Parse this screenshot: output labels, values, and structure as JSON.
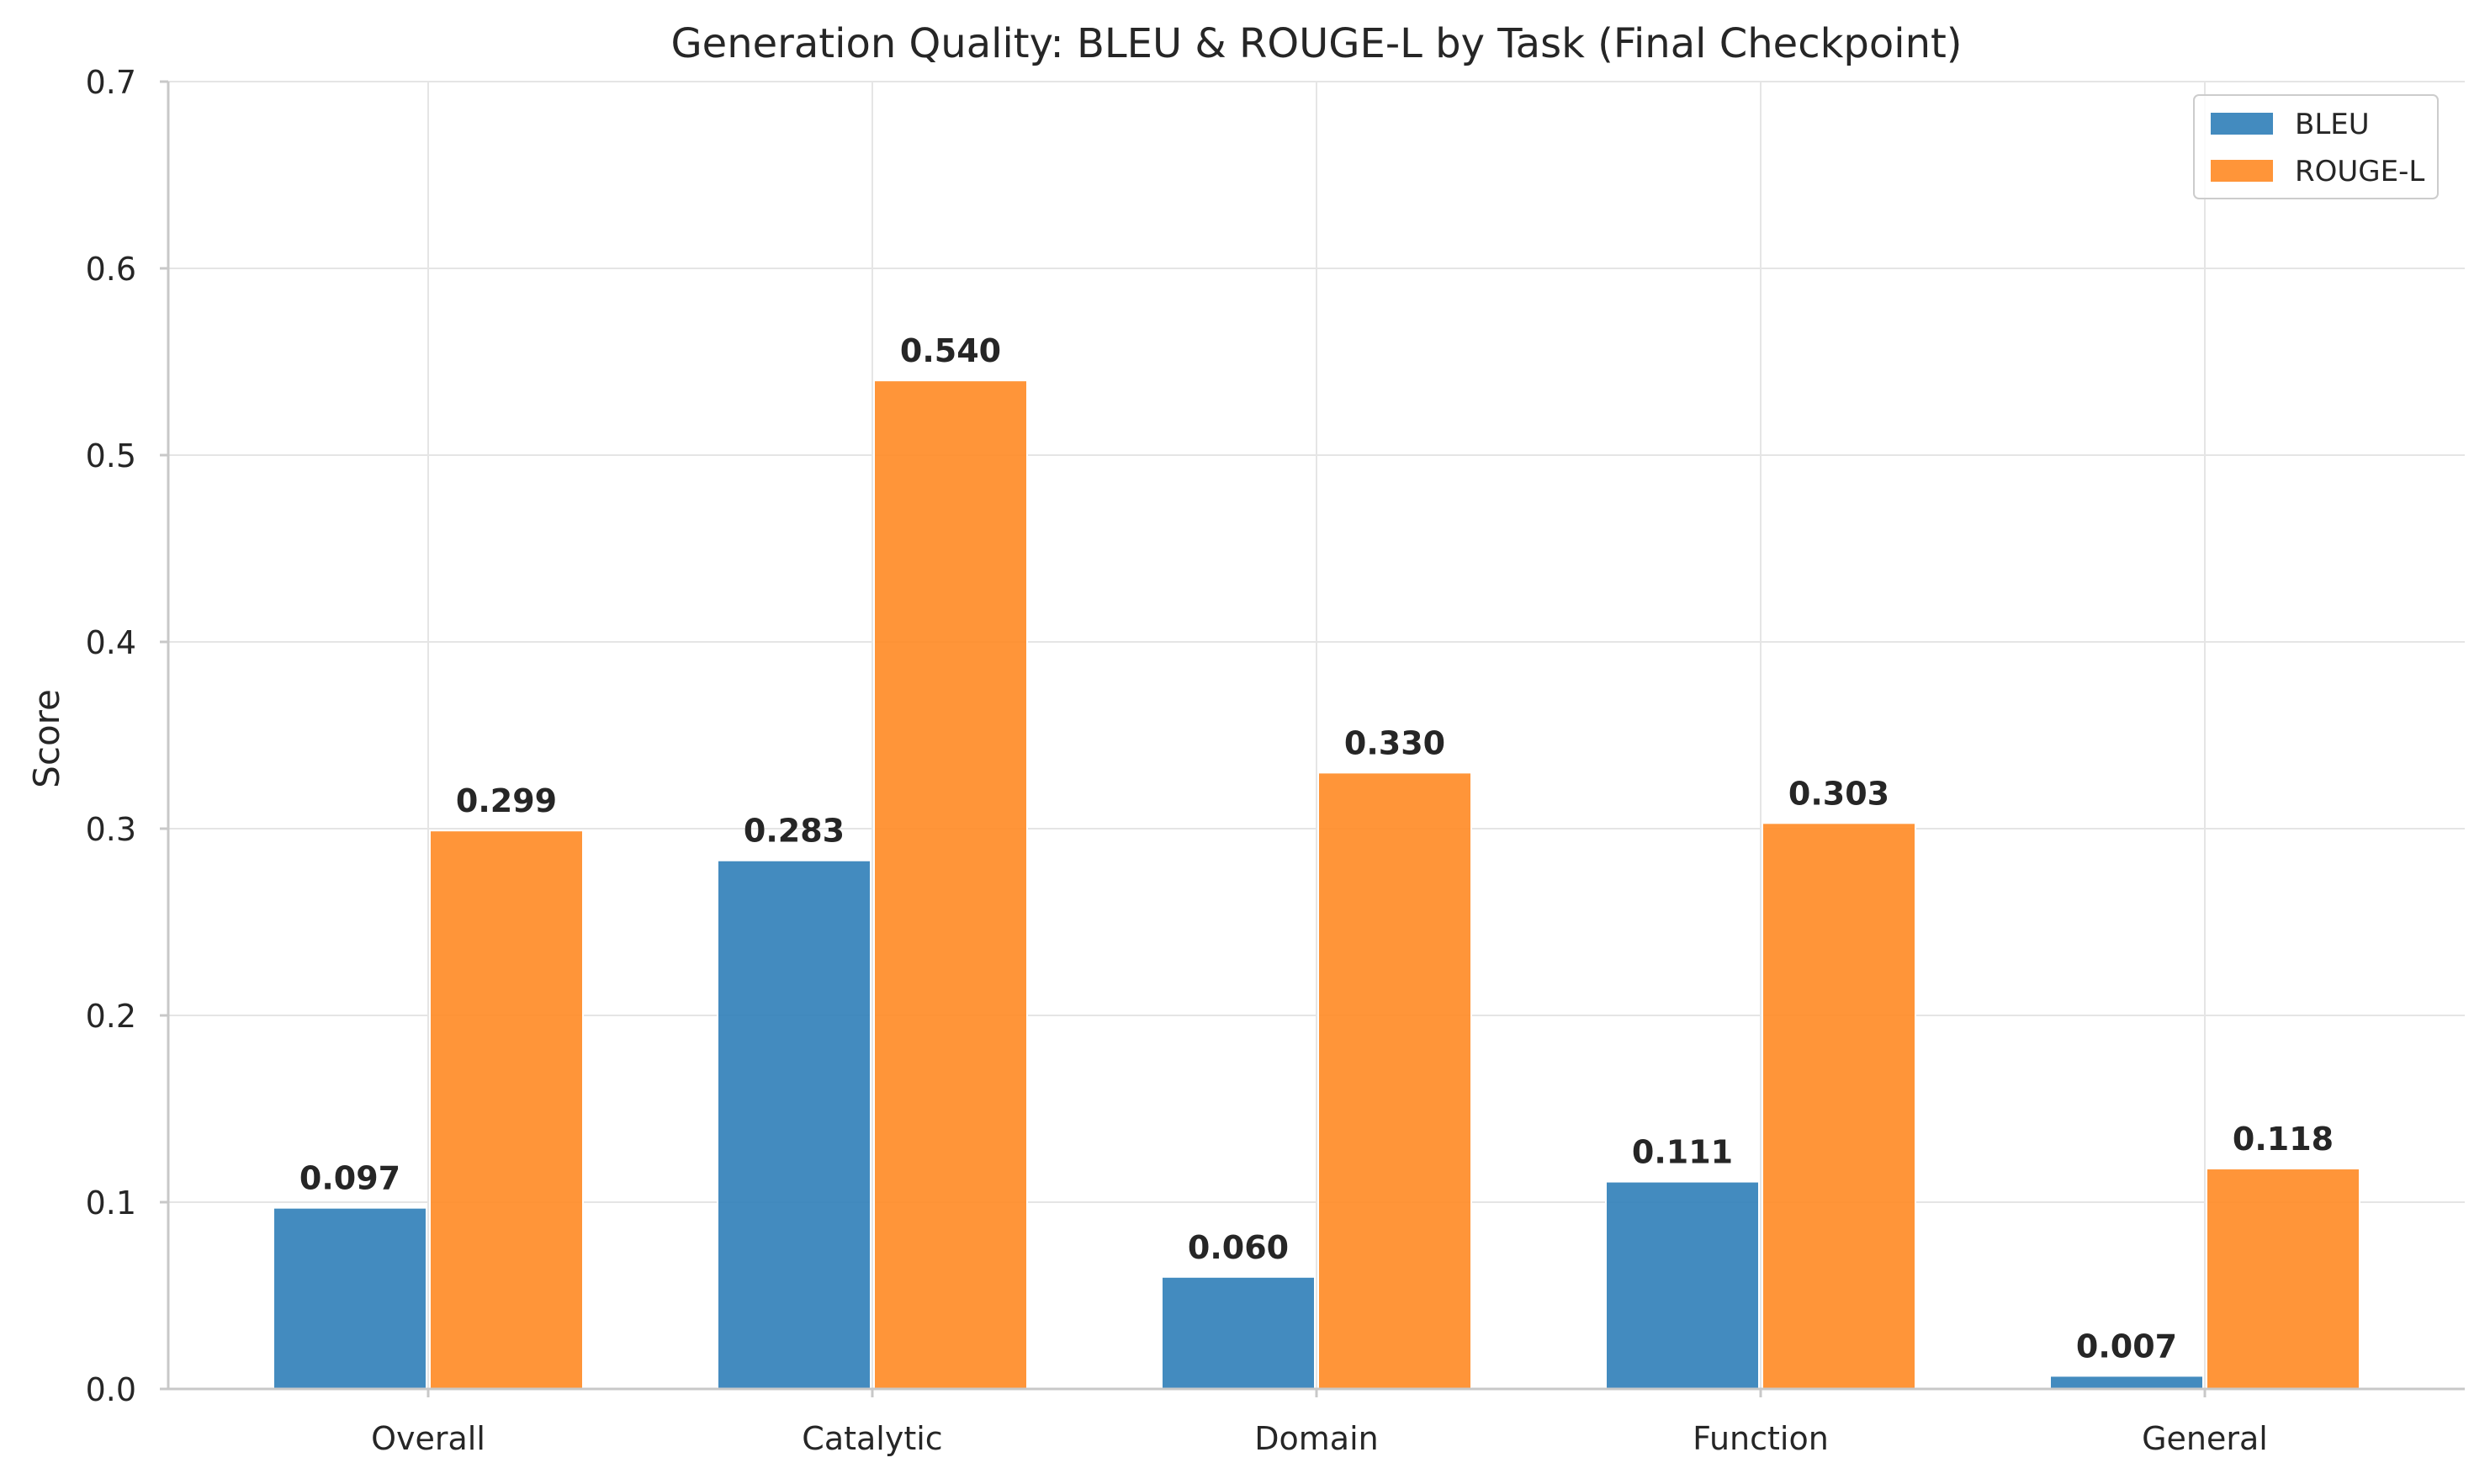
{
  "chart_data": {
    "type": "bar",
    "title": "Generation Quality: BLEU & ROUGE-L by Task (Final Checkpoint)",
    "xlabel": "",
    "ylabel": "Score",
    "categories": [
      "Overall",
      "Catalytic",
      "Domain",
      "Function",
      "General"
    ],
    "series": [
      {
        "name": "BLEU",
        "color": "#2f7eb8",
        "values": [
          0.097,
          0.283,
          0.06,
          0.111,
          0.007
        ]
      },
      {
        "name": "ROUGE-L",
        "color": "#ff8a24",
        "values": [
          0.299,
          0.54,
          0.33,
          0.303,
          0.118
        ]
      }
    ],
    "ylim": [
      0,
      0.7
    ],
    "yticks": [
      "0.0",
      "0.1",
      "0.2",
      "0.3",
      "0.4",
      "0.5",
      "0.6",
      "0.7"
    ],
    "grid": true,
    "legend_position": "top-right",
    "data_label_format": "3-decimal"
  }
}
